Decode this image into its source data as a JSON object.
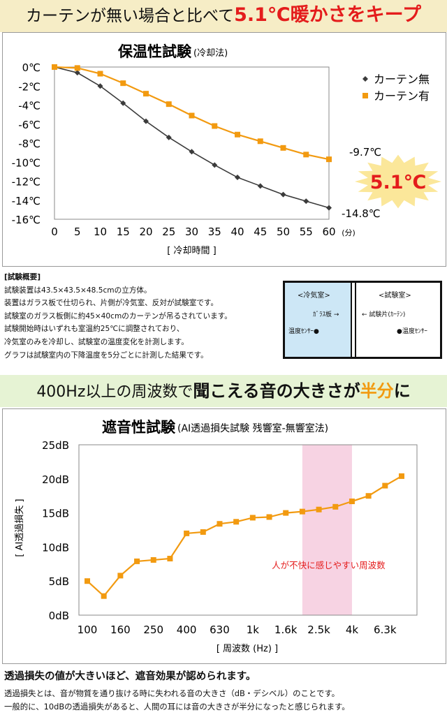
{
  "banner1": {
    "pre": "カーテンが無い場合と比べて",
    "highlight": "5.1℃暖かさをキープ"
  },
  "banner2": {
    "pre": "400Hz以上の周波数で",
    "bold": "聞こえる音の大きさが",
    "highlight": "半分",
    "post": "に"
  },
  "summary": {
    "title": "[試験概要]",
    "lines": [
      "試験装置は43.5×43.5×48.5cmの立方体。",
      "装置はガラス板で仕切られ、片側が冷気室、反対が試験室です。",
      "試験室のガラス板側に約45×40cmのカーテンが吊るされています。",
      "試験開始時はいずれも室温約25℃に調整されており、",
      "冷気室のみを冷却し、試験室の温度変化を計測します。",
      "グラフは試験室内の下降温度を5分ごとに計測した結果です。"
    ]
  },
  "diagram": {
    "cold_room": "<冷気室>",
    "test_room": "<試験室>",
    "glass": "ｶﾞﾗｽ板",
    "arrow_right": "→",
    "arrow_left": "←",
    "sample": "試験片(ｶｰﾃﾝ)",
    "sensor": "温度ｾﾝｻｰ"
  },
  "bottom": {
    "heading": "透過損失の値が大きいほど、遮音効果が認められます。",
    "lines": [
      "透過損失とは、音が物質を通り抜ける時に失われる音の大きさ（dB・デシベル）のことです。",
      "一般的に、10dBの透過損失があると、人間の耳には音の大きさが半分になったと感じられます。"
    ]
  },
  "colors": {
    "orange": "#f29a10",
    "dark": "#3b3b3b",
    "red": "#e41c1c",
    "pink": "#f7d3e3",
    "burst": "#fbe79a"
  },
  "chart_data": [
    {
      "type": "line",
      "title": "保温性試験",
      "subtitle": "(冷却法)",
      "xlabel": "[ 冷却時間 ]",
      "x_unit": "(分)",
      "ylabel": "",
      "x": [
        0,
        5,
        10,
        15,
        20,
        25,
        30,
        35,
        40,
        45,
        50,
        55,
        60
      ],
      "xlim": [
        0,
        60
      ],
      "ylim": [
        -16,
        0
      ],
      "yticks": [
        0,
        -2,
        -4,
        -6,
        -8,
        -10,
        -12,
        -14,
        -16
      ],
      "ytick_labels": [
        "0℃",
        "-2℃",
        "-4℃",
        "-6℃",
        "-8℃",
        "-10℃",
        "-12℃",
        "-14℃",
        "-16℃"
      ],
      "series": [
        {
          "name": "カーテン無",
          "marker": "◆",
          "values": [
            0,
            -0.6,
            -2.0,
            -3.8,
            -5.7,
            -7.4,
            -8.9,
            -10.3,
            -11.6,
            -12.5,
            -13.4,
            -14.1,
            -14.8
          ]
        },
        {
          "name": "カーテン有",
          "marker": "■",
          "values": [
            0,
            -0.1,
            -0.7,
            -1.7,
            -2.8,
            -3.9,
            -5.1,
            -6.2,
            -7.1,
            -7.8,
            -8.5,
            -9.2,
            -9.7
          ]
        }
      ],
      "legend": "top-right",
      "annotations": {
        "end_with": "-9.7℃",
        "end_without": "-14.8℃",
        "difference": "5.1℃"
      }
    },
    {
      "type": "line",
      "title": "遮音性試験",
      "subtitle": "(AI透過損失試験 残響室-無響室法)",
      "xlabel": "[ 周波数 (Hz) ]",
      "ylabel": "[ AI透過損失 ]",
      "x": [
        100,
        125,
        160,
        200,
        250,
        315,
        400,
        500,
        630,
        800,
        1000,
        1250,
        1600,
        2000,
        2500,
        3150,
        4000,
        5000,
        6300,
        8000
      ],
      "xtick_labels": [
        "100",
        "160",
        "250",
        "400",
        "630",
        "1k",
        "1.6k",
        "2.5k",
        "4k",
        "6.3k"
      ],
      "values": [
        5.0,
        2.8,
        5.8,
        7.9,
        8.1,
        8.3,
        12.0,
        12.2,
        13.4,
        13.7,
        14.3,
        14.4,
        15.0,
        15.2,
        15.5,
        15.9,
        16.7,
        17.5,
        19.0,
        20.4
      ],
      "ylim": [
        0,
        25
      ],
      "yticks": [
        0,
        5,
        10,
        15,
        20,
        25
      ],
      "ytick_labels": [
        "0dB",
        "5dB",
        "10dB",
        "15dB",
        "20dB",
        "25dB"
      ],
      "highlight_band": {
        "from": 2000,
        "to": 4000,
        "label": "人が不快に感じやすい周波数"
      }
    }
  ]
}
